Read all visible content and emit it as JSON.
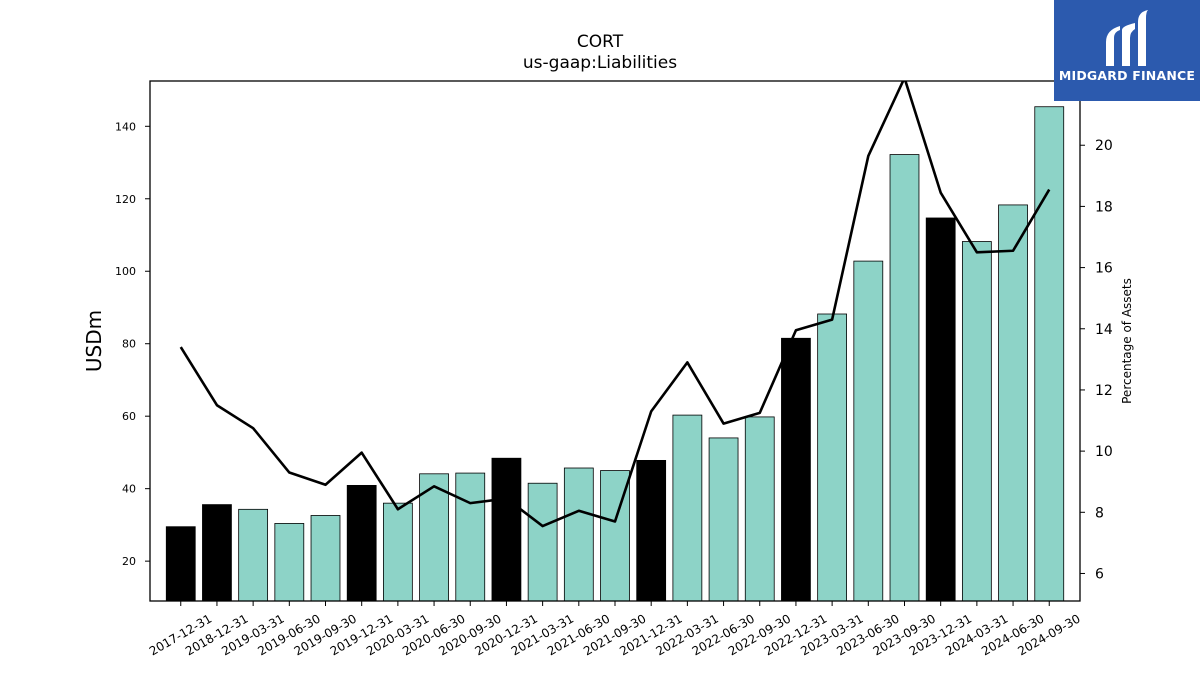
{
  "chart_data": {
    "type": "bar",
    "title": "CORT",
    "subtitle": "us-gaap:Liabilities",
    "ylabel": "USDm",
    "y2label": "Percentage of Assets",
    "categories": [
      "2017-12-31",
      "2018-12-31",
      "2019-03-31",
      "2019-06-30",
      "2019-09-30",
      "2019-12-31",
      "2020-03-31",
      "2020-06-30",
      "2020-09-30",
      "2020-12-31",
      "2021-03-31",
      "2021-06-30",
      "2021-09-30",
      "2021-12-31",
      "2022-03-31",
      "2022-06-30",
      "2022-09-30",
      "2022-12-31",
      "2023-03-31",
      "2023-06-30",
      "2023-09-30",
      "2023-12-31",
      "2024-03-31",
      "2024-06-30",
      "2024-09-30"
    ],
    "series": [
      {
        "kind": "bar",
        "values": [
          29.5,
          35.6,
          34.3,
          30.4,
          32.6,
          40.9,
          36.0,
          44.1,
          44.3,
          48.4,
          41.5,
          45.7,
          45.0,
          47.8,
          60.3,
          54.0,
          59.8,
          81.5,
          88.2,
          102.8,
          132.2,
          114.7,
          108.2,
          118.3,
          145.4
        ]
      },
      {
        "kind": "line",
        "axis": "right",
        "values": [
          13.4,
          11.5,
          10.75,
          9.3,
          8.9,
          9.95,
          8.1,
          8.85,
          8.3,
          8.45,
          7.55,
          8.05,
          7.7,
          11.3,
          12.9,
          10.9,
          11.25,
          13.95,
          14.3,
          19.65,
          22.2,
          18.45,
          16.5,
          16.55,
          18.55
        ]
      }
    ],
    "highlight_categories": [
      "2017-12-31",
      "2018-12-31",
      "2019-12-31",
      "2020-12-31",
      "2021-12-31",
      "2022-12-31",
      "2023-12-31"
    ],
    "ylim": [
      9,
      152.5
    ],
    "yticks": [
      20,
      40,
      60,
      80,
      100,
      120,
      140
    ],
    "y2lim": [
      5.1,
      22.1
    ],
    "y2ticks": [
      6,
      8,
      10,
      12,
      14,
      16,
      18,
      20
    ],
    "grid": false,
    "colors": {
      "bar": "#8dd3c7",
      "bar_highlight": "#000000",
      "bar_edge": "#000000",
      "line": "#000000"
    }
  },
  "logo": {
    "text": "MIDGARD FINANCE",
    "icon": "midgard-logo-icon",
    "background": "#2c5aae"
  }
}
